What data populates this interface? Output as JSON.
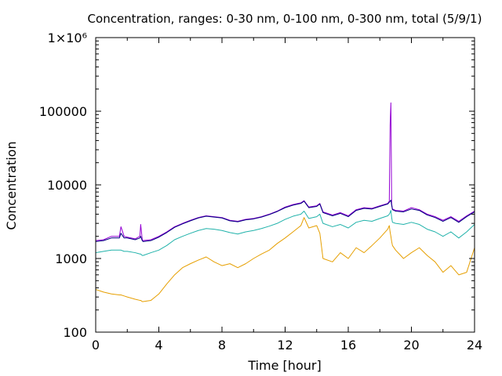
{
  "chart_data": {
    "type": "line",
    "title": "Concentration, ranges: 0-30 nm, 0-100 nm, 0-300 nm, total (5/9/1)",
    "xlabel": "Time [hour]",
    "ylabel": "Concentration",
    "xlim": [
      0,
      24
    ],
    "ylim": [
      100,
      1000000
    ],
    "yscale": "log",
    "grid": false,
    "legend": "none",
    "x_ticks": [
      0,
      4,
      8,
      12,
      16,
      20,
      24
    ],
    "y_ticks": [
      {
        "value": 100,
        "label": "100"
      },
      {
        "value": 1000,
        "label": "1000"
      },
      {
        "value": 10000,
        "label": "10000"
      },
      {
        "value": 100000,
        "label": "100000"
      },
      {
        "value": 1000000,
        "label": "1×10⁶"
      }
    ],
    "x": [
      0,
      0.5,
      1,
      1.5,
      1.6,
      1.8,
      2,
      2.5,
      2.8,
      2.85,
      2.95,
      3,
      3.5,
      4,
      4.5,
      5,
      5.5,
      6,
      6.5,
      7,
      7.5,
      8,
      8.5,
      9,
      9.5,
      10,
      10.5,
      11,
      11.5,
      12,
      12.5,
      13,
      13.2,
      13.5,
      14,
      14.2,
      14.4,
      15,
      15.5,
      16,
      16.5,
      17,
      17.5,
      18,
      18.5,
      18.6,
      18.65,
      18.7,
      18.75,
      18.8,
      19,
      19.5,
      20,
      20.5,
      21,
      21.5,
      22,
      22.5,
      23,
      23.5,
      24
    ],
    "series": [
      {
        "color": "#9400d3",
        "values": [
          1750,
          1800,
          2000,
          2000,
          2700,
          2000,
          1950,
          1850,
          2000,
          2900,
          1800,
          1750,
          1800,
          2000,
          2300,
          2700,
          3000,
          3300,
          3600,
          3800,
          3700,
          3600,
          3300,
          3200,
          3400,
          3500,
          3700,
          4000,
          4400,
          5000,
          5400,
          5700,
          6100,
          5000,
          5200,
          5600,
          4300,
          3900,
          4200,
          3800,
          4600,
          4900,
          4800,
          5200,
          5600,
          6000,
          65000,
          130000,
          5500,
          4700,
          4500,
          4400,
          4900,
          4600,
          4000,
          3700,
          3300,
          3700,
          3200,
          3800,
          4400
        ]
      },
      {
        "color": "#000080",
        "values": [
          1700,
          1750,
          1900,
          1900,
          2200,
          1900,
          1900,
          1800,
          1900,
          2000,
          1750,
          1700,
          1750,
          1950,
          2250,
          2650,
          2950,
          3250,
          3550,
          3750,
          3650,
          3550,
          3250,
          3150,
          3350,
          3450,
          3650,
          3950,
          4350,
          4900,
          5300,
          5600,
          6000,
          4900,
          5100,
          5500,
          4200,
          3800,
          4100,
          3700,
          4500,
          4800,
          4700,
          5100,
          5500,
          5800,
          6000,
          6200,
          5300,
          4600,
          4400,
          4300,
          4700,
          4500,
          3900,
          3600,
          3200,
          3600,
          3100,
          3700,
          4300
        ]
      },
      {
        "color": "#20b2aa",
        "values": [
          1200,
          1250,
          1300,
          1300,
          1300,
          1250,
          1250,
          1200,
          1150,
          1150,
          1100,
          1100,
          1200,
          1300,
          1500,
          1800,
          2000,
          2200,
          2400,
          2550,
          2500,
          2400,
          2250,
          2150,
          2300,
          2400,
          2550,
          2750,
          3000,
          3400,
          3750,
          4000,
          4400,
          3500,
          3700,
          4000,
          3000,
          2700,
          2900,
          2600,
          3100,
          3300,
          3200,
          3500,
          3800,
          4000,
          4200,
          4500,
          3600,
          3100,
          3000,
          2900,
          3100,
          2900,
          2500,
          2300,
          2000,
          2300,
          1900,
          2300,
          2900
        ]
      },
      {
        "color": "#e69f00",
        "values": [
          380,
          350,
          330,
          320,
          320,
          310,
          300,
          280,
          270,
          270,
          260,
          260,
          270,
          330,
          450,
          600,
          750,
          850,
          950,
          1050,
          900,
          800,
          850,
          750,
          850,
          1000,
          1150,
          1300,
          1600,
          1900,
          2300,
          2800,
          3600,
          2600,
          2800,
          2200,
          1000,
          900,
          1200,
          1000,
          1400,
          1200,
          1500,
          1900,
          2500,
          2800,
          2300,
          2000,
          1700,
          1500,
          1300,
          1000,
          1200,
          1400,
          1100,
          900,
          650,
          800,
          600,
          650,
          1400
        ]
      }
    ]
  }
}
